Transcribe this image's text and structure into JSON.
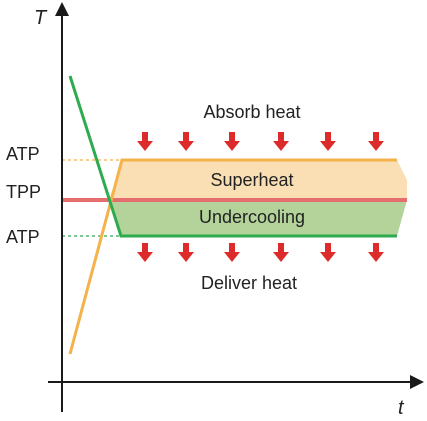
{
  "axes": {
    "y_label": "T",
    "x_label": "t"
  },
  "levels": {
    "atp_upper": "ATP",
    "tpp": "TPP",
    "atp_lower": "ATP"
  },
  "zones": {
    "superheat": "Superheat",
    "undercooling": "Undercooling"
  },
  "annotations": {
    "absorb": "Absorb heat",
    "deliver": "Deliver heat"
  },
  "arrows": {
    "top_count": 6,
    "bottom_count": 6,
    "icon": "arrow-down-icon"
  },
  "colors": {
    "axis": "#1a1a1a",
    "superheat_fill": "#f9dfb3",
    "undercooling_fill": "#b3d39a",
    "heating_line": "#f4b24a",
    "cooling_line": "#2eaa4f",
    "tpp_line": "#e46d6d",
    "arrow": "#dd2b2b"
  }
}
